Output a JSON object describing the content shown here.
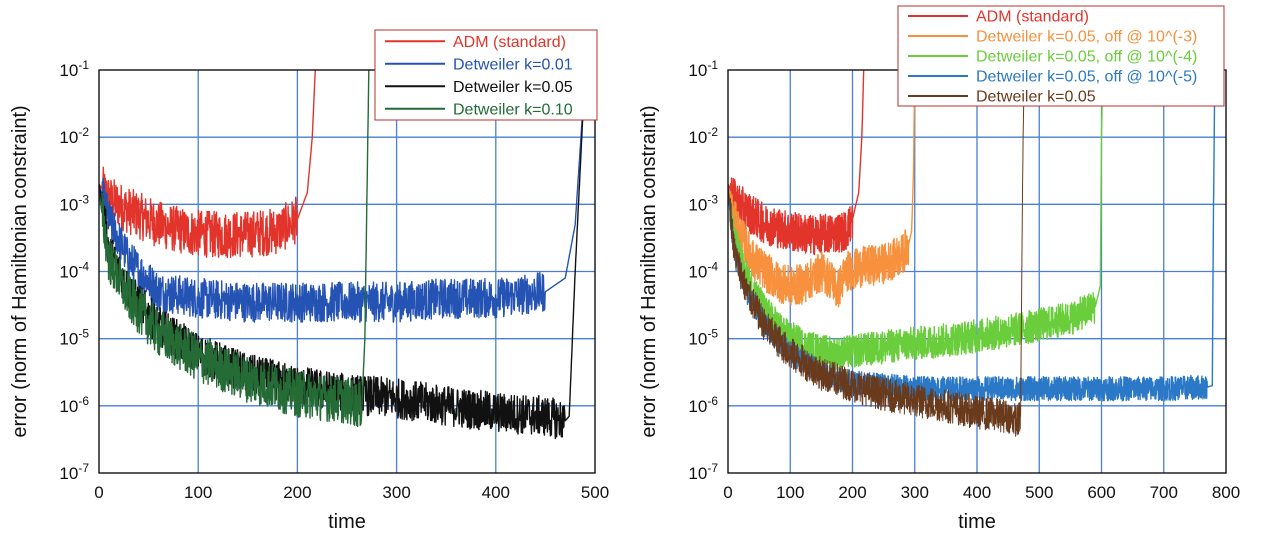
{
  "chart_data": [
    {
      "type": "line",
      "xlabel": "time",
      "ylabel": "error (norm of Hamiltonian constraint)",
      "y_scale": "log",
      "xlim": [
        0,
        500
      ],
      "ylim": [
        1e-07,
        0.1
      ],
      "x_ticks": [
        "0",
        "100",
        "200",
        "300",
        "400",
        "500"
      ],
      "y_ticks": [
        {
          "base": "10",
          "exp": "-7"
        },
        {
          "base": "10",
          "exp": "-6"
        },
        {
          "base": "10",
          "exp": "-5"
        },
        {
          "base": "10",
          "exp": "-4"
        },
        {
          "base": "10",
          "exp": "-3"
        },
        {
          "base": "10",
          "exp": "-2"
        },
        {
          "base": "10",
          "exp": "-1"
        }
      ],
      "grid": true,
      "legend_position": "top-right",
      "series": [
        {
          "name": "ADM (standard)",
          "color": "#e2342b",
          "noise": 0.35,
          "x": [
            0,
            10,
            30,
            60,
            90,
            120,
            150,
            180,
            200,
            210,
            215,
            218
          ],
          "y": [
            0.002,
            0.0012,
            0.0008,
            0.0005,
            0.00038,
            0.00035,
            0.00036,
            0.0004,
            0.0006,
            0.0015,
            0.01,
            0.1
          ]
        },
        {
          "name": "Detweiler k=0.01",
          "color": "#2453b4",
          "noise": 0.3,
          "x": [
            0,
            10,
            30,
            60,
            100,
            150,
            200,
            250,
            300,
            350,
            400,
            450,
            470,
            480,
            488
          ],
          "y": [
            0.002,
            0.0006,
            0.00015,
            5e-05,
            4e-05,
            3.5e-05,
            3.5e-05,
            3.5e-05,
            3.5e-05,
            4e-05,
            4e-05,
            5e-05,
            8e-05,
            0.0005,
            0.03
          ]
        },
        {
          "name": "Detweiler k=0.05",
          "color": "#111111",
          "noise": 0.3,
          "x": [
            0,
            10,
            30,
            60,
            100,
            150,
            200,
            250,
            300,
            350,
            400,
            450,
            470,
            474,
            480,
            490
          ],
          "y": [
            0.002,
            0.0002,
            5e-05,
            1.5e-05,
            6e-06,
            3e-06,
            2e-06,
            1.5e-06,
            1.3e-06,
            1e-06,
            8e-07,
            7e-07,
            6e-07,
            7e-07,
            0.0001,
            0.1
          ]
        },
        {
          "name": "Detweiler k=0.10",
          "color": "#246b35",
          "noise": 0.35,
          "x": [
            0,
            10,
            30,
            60,
            100,
            150,
            200,
            250,
            265,
            268,
            270,
            272
          ],
          "y": [
            0.0015,
            0.00015,
            4e-05,
            1.2e-05,
            5e-06,
            2.5e-06,
            1.5e-06,
            1.2e-06,
            1e-06,
            1e-05,
            0.001,
            0.1
          ]
        }
      ]
    },
    {
      "type": "line",
      "xlabel": "time",
      "ylabel": "error (norm of Hamiltonian constraint)",
      "y_scale": "log",
      "xlim": [
        0,
        800
      ],
      "ylim": [
        1e-07,
        0.1
      ],
      "x_ticks": [
        "0",
        "100",
        "200",
        "300",
        "400",
        "500",
        "600",
        "700",
        "800"
      ],
      "y_ticks": [
        {
          "base": "10",
          "exp": "-7"
        },
        {
          "base": "10",
          "exp": "-6"
        },
        {
          "base": "10",
          "exp": "-5"
        },
        {
          "base": "10",
          "exp": "-4"
        },
        {
          "base": "10",
          "exp": "-3"
        },
        {
          "base": "10",
          "exp": "-2"
        },
        {
          "base": "10",
          "exp": "-1"
        }
      ],
      "grid": true,
      "legend_position": "top-right",
      "series": [
        {
          "name": "ADM (standard)",
          "color": "#e2342b",
          "noise": 0.3,
          "x": [
            0,
            10,
            30,
            60,
            100,
            130,
            160,
            190,
            200,
            210,
            215,
            218
          ],
          "y": [
            0.002,
            0.0012,
            0.0008,
            0.0005,
            0.0004,
            0.00035,
            0.00036,
            0.0004,
            0.0006,
            0.0015,
            0.01,
            0.1
          ]
        },
        {
          "name": "Detweiler k=0.05, off @ 10^(-3)",
          "color": "#f7913d",
          "noise": 0.3,
          "x": [
            0,
            10,
            20,
            40,
            60,
            80,
            100,
            120,
            150,
            170,
            175,
            190,
            220,
            250,
            280,
            290,
            295,
            298,
            300
          ],
          "y": [
            0.0012,
            0.0006,
            0.00035,
            0.00015,
            0.0001,
            7e-05,
            6e-05,
            6.5e-05,
            0.0001,
            7e-05,
            5e-05,
            0.0001,
            0.00012,
            0.00013,
            0.00018,
            0.00025,
            0.0004,
            0.003,
            0.1
          ]
        },
        {
          "name": "Detweiler k=0.05, off @ 10^(-4)",
          "color": "#6acd3c",
          "noise": 0.25,
          "x": [
            0,
            10,
            30,
            60,
            90,
            120,
            150,
            180,
            200,
            250,
            300,
            350,
            400,
            450,
            500,
            550,
            590,
            598,
            600,
            602
          ],
          "y": [
            0.0015,
            0.0003,
            8e-05,
            2.5e-05,
            1.2e-05,
            8e-06,
            6.5e-06,
            6e-06,
            6.5e-06,
            7.5e-06,
            8.5e-06,
            9.5e-06,
            1.1e-05,
            1.3e-05,
            1.6e-05,
            2e-05,
            3e-05,
            6e-05,
            0.01,
            0.1
          ]
        },
        {
          "name": "Detweiler k=0.05, off @ 10^(-5)",
          "color": "#2b78c7",
          "noise": 0.18,
          "x": [
            0,
            10,
            30,
            60,
            100,
            150,
            200,
            250,
            300,
            400,
            500,
            600,
            700,
            770,
            778,
            780,
            782
          ],
          "y": [
            0.0015,
            0.0002,
            5e-05,
            1.5e-05,
            6e-06,
            3e-06,
            2.2e-06,
            2e-06,
            1.8e-06,
            1.8e-06,
            1.8e-06,
            1.8e-06,
            1.8e-06,
            1.9e-06,
            2e-06,
            0.001,
            0.1
          ]
        },
        {
          "name": "Detweiler k=0.05",
          "color": "#6a3a1c",
          "noise": 0.25,
          "x": [
            0,
            10,
            30,
            60,
            100,
            150,
            200,
            250,
            300,
            350,
            400,
            450,
            465,
            470,
            472,
            474,
            476
          ],
          "y": [
            0.002,
            0.0002,
            5e-05,
            1.5e-05,
            6e-06,
            3e-06,
            2e-06,
            1.5e-06,
            1.2e-06,
            1e-06,
            8e-07,
            7e-07,
            6e-07,
            7e-07,
            0.0001,
            0.01,
            0.1
          ]
        }
      ]
    }
  ]
}
